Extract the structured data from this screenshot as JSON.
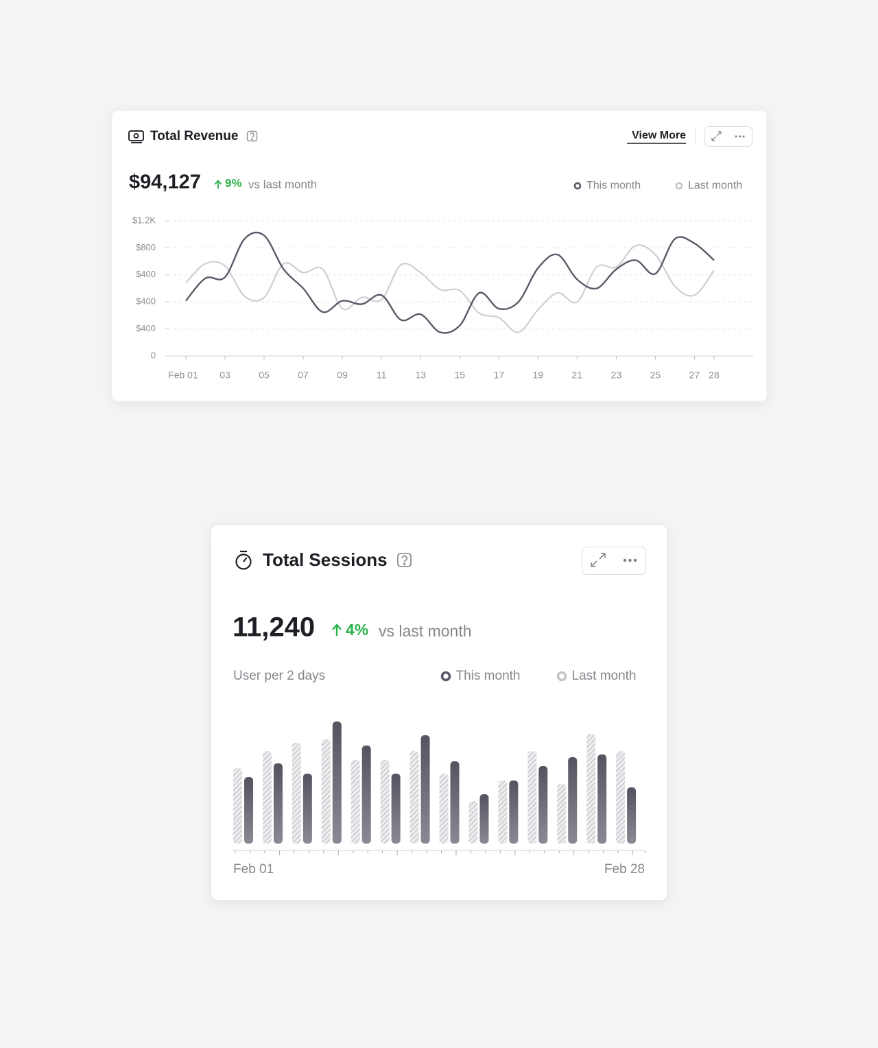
{
  "chart_data": [
    {
      "type": "line",
      "title": "Total Revenue",
      "link": "View More",
      "total": "$94,127",
      "change": "9%",
      "change_note": "vs last month",
      "x": [
        1,
        2,
        3,
        4,
        5,
        6,
        7,
        8,
        9,
        10,
        11,
        12,
        13,
        14,
        15,
        16,
        17,
        18,
        19,
        20,
        21,
        22,
        23,
        24,
        25,
        26,
        27,
        28
      ],
      "xlim": [
        0.02,
        30
      ],
      "xticks": [
        {
          "value": 1,
          "label": "Feb 01"
        },
        {
          "value": 3,
          "label": "03"
        },
        {
          "value": 5,
          "label": "05"
        },
        {
          "value": 7,
          "label": "07"
        },
        {
          "value": 9,
          "label": "09"
        },
        11,
        13,
        15,
        17,
        19,
        21,
        23,
        25,
        27,
        28
      ],
      "ylim": [
        0,
        1200
      ],
      "yticks": [
        0,
        {
          "value": 240,
          "label": "$400"
        },
        {
          "value": 480,
          "label": "$400"
        },
        {
          "value": 720,
          "label": "$400"
        },
        {
          "value": 960,
          "label": "$800"
        },
        {
          "value": 1200,
          "label": "$1.2K"
        }
      ],
      "grid": true,
      "series": [
        {
          "name": "This month",
          "color": "#5b5967",
          "values": [
            490,
            690,
            700,
            1040,
            1070,
            770,
            600,
            390,
            490,
            460,
            540,
            320,
            370,
            210,
            270,
            560,
            420,
            480,
            780,
            900,
            680,
            600,
            770,
            850,
            730,
            1040,
            1000,
            850
          ]
        },
        {
          "name": "Last month",
          "color": "#cfcfd3",
          "values": [
            650,
            820,
            800,
            530,
            520,
            820,
            740,
            770,
            420,
            520,
            500,
            810,
            740,
            590,
            580,
            380,
            340,
            210,
            410,
            560,
            480,
            790,
            790,
            980,
            900,
            620,
            540,
            760
          ]
        }
      ]
    },
    {
      "type": "bar",
      "title": "Total Sessions",
      "total": "11,240",
      "change": "4%",
      "change_note": "vs last month",
      "subtitle": "User per 2 days",
      "categories": [
        "Feb 01",
        null,
        null,
        null,
        null,
        null,
        null,
        null,
        null,
        null,
        null,
        null,
        null,
        "Feb 28"
      ],
      "ylim": [
        0,
        180
      ],
      "series": [
        {
          "name": "This month",
          "color": "#5b5967",
          "values": [
            97,
            117,
            102,
            178,
            143,
            102,
            158,
            120,
            72,
            92,
            113,
            126,
            130,
            82
          ]
        },
        {
          "name": "Last month",
          "color": "#c4c4c9",
          "values": [
            110,
            135,
            147,
            152,
            122,
            122,
            135,
            102,
            62,
            92,
            135,
            87,
            160,
            135
          ]
        }
      ]
    }
  ]
}
